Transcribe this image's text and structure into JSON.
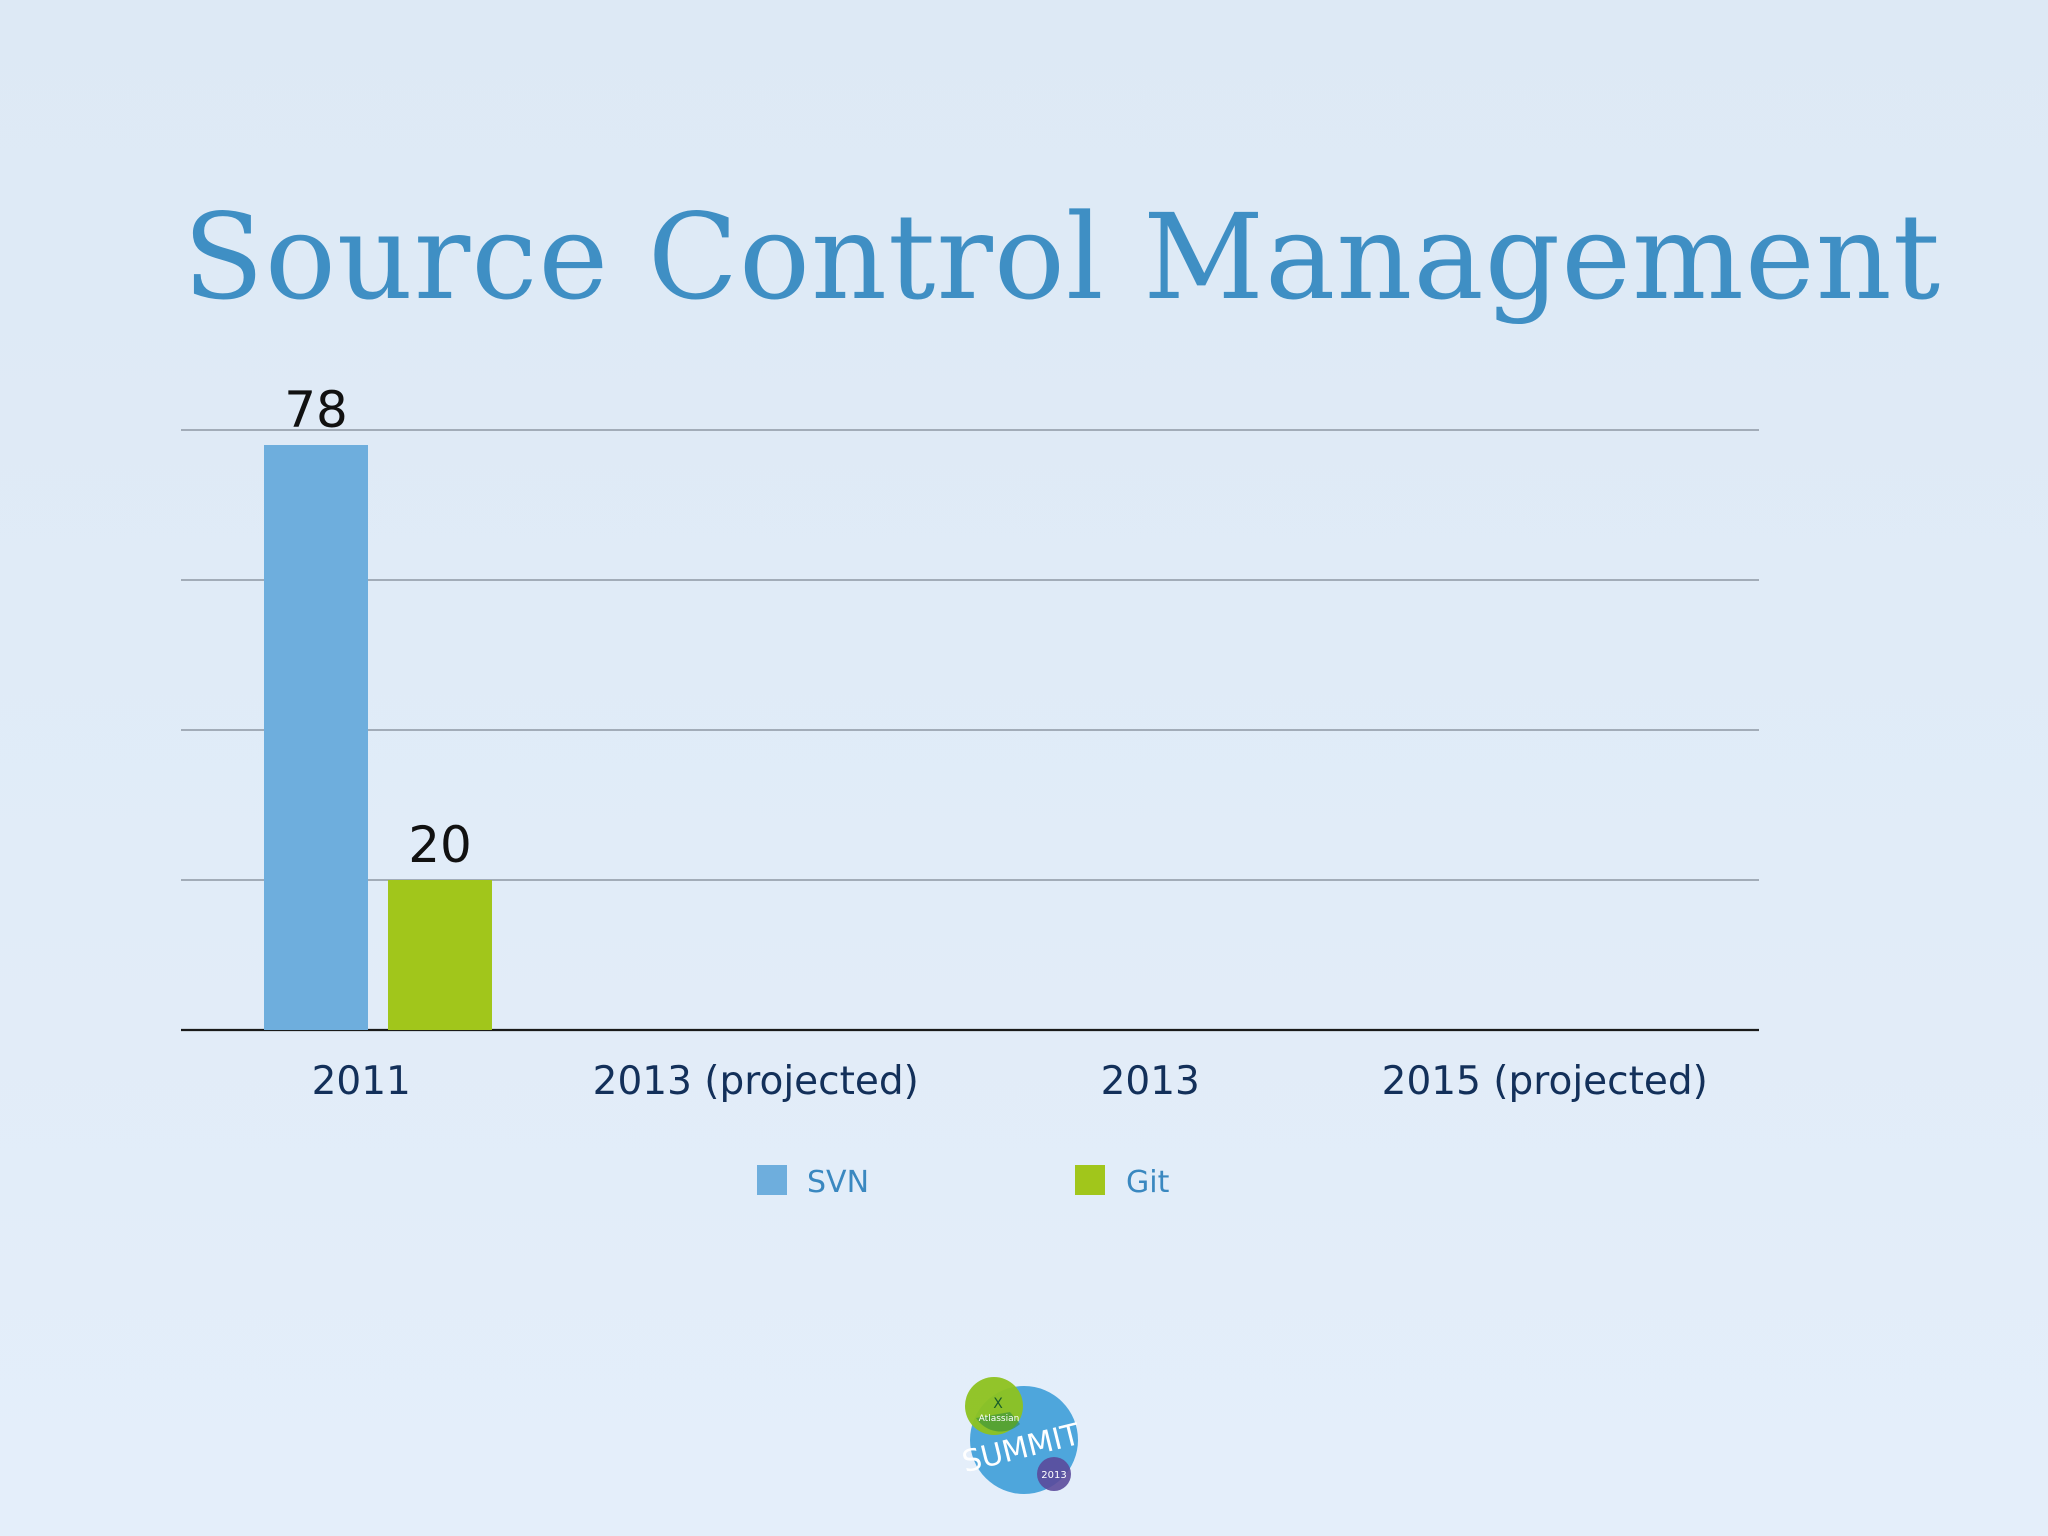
{
  "slide": {
    "title": "Source Control Management",
    "logo": {
      "brand": "Atlassian",
      "event": "SUMMIT",
      "year": "2013"
    }
  },
  "colors": {
    "title": "#3f8fc4",
    "svn": "#6eaedd",
    "git": "#a1c61b",
    "gridline": "#8e97a3",
    "axis": "#1a1a1a",
    "tick_label": "#13305a",
    "legend_text": "#3a88c0"
  },
  "chart_data": {
    "type": "bar",
    "title": "Source Control Management",
    "categories": [
      "2011",
      "2013 (projected)",
      "2013",
      "2015 (projected)"
    ],
    "series": [
      {
        "name": "SVN",
        "values": [
          78,
          null,
          null,
          null
        ],
        "color": "#6eaedd"
      },
      {
        "name": "Git",
        "values": [
          20,
          null,
          null,
          null
        ],
        "color": "#a1c61b"
      }
    ],
    "data_labels": [
      {
        "series": "SVN",
        "category": "2011",
        "text": "78"
      },
      {
        "series": "Git",
        "category": "2011",
        "text": "20"
      }
    ],
    "ylim": [
      0,
      80
    ],
    "gridlines": [
      20,
      40,
      60,
      80
    ],
    "grid": true,
    "y_axis_labels_shown": false,
    "legend": {
      "position": "bottom",
      "items": [
        "SVN",
        "Git"
      ]
    }
  }
}
